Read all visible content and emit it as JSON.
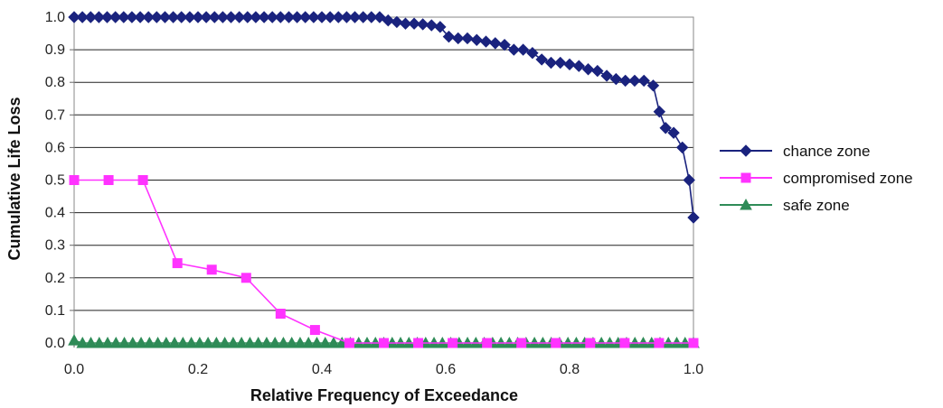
{
  "chart_data": {
    "type": "line",
    "title": "",
    "xlabel": "Relative Frequency of Exceedance",
    "ylabel": "Cumulative Life Loss",
    "xlim": [
      0,
      1
    ],
    "ylim": [
      0,
      1
    ],
    "x_ticks": [
      "0.0",
      "0.2",
      "0.4",
      "0.6",
      "0.8",
      "1.0"
    ],
    "y_ticks": [
      "0.0",
      "0.1",
      "0.2",
      "0.3",
      "0.4",
      "0.5",
      "0.6",
      "0.7",
      "0.8",
      "0.9",
      "1.0"
    ],
    "grid": "horizontal",
    "legend_position": "right",
    "series": [
      {
        "name": "chance zone",
        "color": "#1a237e",
        "marker": "diamond",
        "points": [
          [
            0.0,
            1.0
          ],
          [
            0.0133,
            1.0
          ],
          [
            0.0267,
            1.0
          ],
          [
            0.04,
            1.0
          ],
          [
            0.0533,
            1.0
          ],
          [
            0.0667,
            1.0
          ],
          [
            0.08,
            1.0
          ],
          [
            0.0933,
            1.0
          ],
          [
            0.1067,
            1.0
          ],
          [
            0.12,
            1.0
          ],
          [
            0.1333,
            1.0
          ],
          [
            0.1467,
            1.0
          ],
          [
            0.16,
            1.0
          ],
          [
            0.1733,
            1.0
          ],
          [
            0.1867,
            1.0
          ],
          [
            0.2,
            1.0
          ],
          [
            0.2133,
            1.0
          ],
          [
            0.2267,
            1.0
          ],
          [
            0.24,
            1.0
          ],
          [
            0.2533,
            1.0
          ],
          [
            0.2667,
            1.0
          ],
          [
            0.28,
            1.0
          ],
          [
            0.2933,
            1.0
          ],
          [
            0.3067,
            1.0
          ],
          [
            0.32,
            1.0
          ],
          [
            0.3333,
            1.0
          ],
          [
            0.3467,
            1.0
          ],
          [
            0.36,
            1.0
          ],
          [
            0.3733,
            1.0
          ],
          [
            0.3867,
            1.0
          ],
          [
            0.4,
            1.0
          ],
          [
            0.4133,
            1.0
          ],
          [
            0.4267,
            1.0
          ],
          [
            0.44,
            1.0
          ],
          [
            0.4533,
            1.0
          ],
          [
            0.4667,
            1.0
          ],
          [
            0.48,
            1.0
          ],
          [
            0.4933,
            1.0
          ],
          [
            0.507,
            0.99
          ],
          [
            0.521,
            0.985
          ],
          [
            0.535,
            0.98
          ],
          [
            0.549,
            0.98
          ],
          [
            0.563,
            0.978
          ],
          [
            0.577,
            0.975
          ],
          [
            0.591,
            0.97
          ],
          [
            0.605,
            0.94
          ],
          [
            0.62,
            0.935
          ],
          [
            0.635,
            0.935
          ],
          [
            0.65,
            0.93
          ],
          [
            0.665,
            0.925
          ],
          [
            0.68,
            0.92
          ],
          [
            0.695,
            0.915
          ],
          [
            0.71,
            0.9
          ],
          [
            0.725,
            0.9
          ],
          [
            0.74,
            0.89
          ],
          [
            0.755,
            0.87
          ],
          [
            0.77,
            0.86
          ],
          [
            0.785,
            0.86
          ],
          [
            0.8,
            0.855
          ],
          [
            0.815,
            0.85
          ],
          [
            0.83,
            0.84
          ],
          [
            0.845,
            0.835
          ],
          [
            0.86,
            0.82
          ],
          [
            0.875,
            0.81
          ],
          [
            0.89,
            0.805
          ],
          [
            0.905,
            0.805
          ],
          [
            0.92,
            0.805
          ],
          [
            0.935,
            0.79
          ],
          [
            0.945,
            0.71
          ],
          [
            0.955,
            0.66
          ],
          [
            0.968,
            0.645
          ],
          [
            0.982,
            0.6
          ],
          [
            0.993,
            0.5
          ],
          [
            1.0,
            0.385
          ]
        ]
      },
      {
        "name": "compromised zone",
        "color": "#ff33ff",
        "marker": "square",
        "points": [
          [
            0.0,
            0.5
          ],
          [
            0.0556,
            0.5
          ],
          [
            0.1111,
            0.5
          ],
          [
            0.1667,
            0.245
          ],
          [
            0.2222,
            0.225
          ],
          [
            0.2778,
            0.2
          ],
          [
            0.3333,
            0.09
          ],
          [
            0.3889,
            0.04
          ],
          [
            0.4444,
            0.0
          ],
          [
            0.5,
            0.0
          ],
          [
            0.5556,
            0.0
          ],
          [
            0.6111,
            0.0
          ],
          [
            0.6667,
            0.0
          ],
          [
            0.7222,
            0.0
          ],
          [
            0.7778,
            0.0
          ],
          [
            0.8333,
            0.0
          ],
          [
            0.8889,
            0.0
          ],
          [
            0.9444,
            0.0
          ],
          [
            1.0,
            0.0
          ]
        ]
      },
      {
        "name": "safe zone",
        "color": "#2e8b57",
        "marker": "triangle",
        "points": "flat-zero"
      }
    ]
  }
}
